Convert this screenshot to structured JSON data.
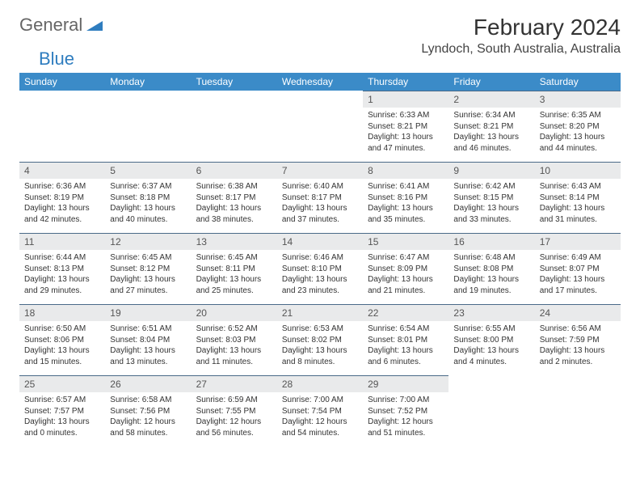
{
  "logo": {
    "text1": "General",
    "text2": "Blue"
  },
  "title": "February 2024",
  "location": "Lyndoch, South Australia, Australia",
  "colors": {
    "header_bg": "#3b8bc8",
    "header_fg": "#ffffff",
    "daynum_bg": "#e9eaeb",
    "daynum_border": "#4a6a88",
    "logo_blue": "#2f7dbf",
    "logo_gray": "#666666"
  },
  "columns": [
    "Sunday",
    "Monday",
    "Tuesday",
    "Wednesday",
    "Thursday",
    "Friday",
    "Saturday"
  ],
  "weeks": [
    [
      {
        "blank": true
      },
      {
        "blank": true
      },
      {
        "blank": true
      },
      {
        "blank": true
      },
      {
        "num": "1",
        "sunrise": "Sunrise: 6:33 AM",
        "sunset": "Sunset: 8:21 PM",
        "daylight": "Daylight: 13 hours and 47 minutes."
      },
      {
        "num": "2",
        "sunrise": "Sunrise: 6:34 AM",
        "sunset": "Sunset: 8:21 PM",
        "daylight": "Daylight: 13 hours and 46 minutes."
      },
      {
        "num": "3",
        "sunrise": "Sunrise: 6:35 AM",
        "sunset": "Sunset: 8:20 PM",
        "daylight": "Daylight: 13 hours and 44 minutes."
      }
    ],
    [
      {
        "num": "4",
        "sunrise": "Sunrise: 6:36 AM",
        "sunset": "Sunset: 8:19 PM",
        "daylight": "Daylight: 13 hours and 42 minutes."
      },
      {
        "num": "5",
        "sunrise": "Sunrise: 6:37 AM",
        "sunset": "Sunset: 8:18 PM",
        "daylight": "Daylight: 13 hours and 40 minutes."
      },
      {
        "num": "6",
        "sunrise": "Sunrise: 6:38 AM",
        "sunset": "Sunset: 8:17 PM",
        "daylight": "Daylight: 13 hours and 38 minutes."
      },
      {
        "num": "7",
        "sunrise": "Sunrise: 6:40 AM",
        "sunset": "Sunset: 8:17 PM",
        "daylight": "Daylight: 13 hours and 37 minutes."
      },
      {
        "num": "8",
        "sunrise": "Sunrise: 6:41 AM",
        "sunset": "Sunset: 8:16 PM",
        "daylight": "Daylight: 13 hours and 35 minutes."
      },
      {
        "num": "9",
        "sunrise": "Sunrise: 6:42 AM",
        "sunset": "Sunset: 8:15 PM",
        "daylight": "Daylight: 13 hours and 33 minutes."
      },
      {
        "num": "10",
        "sunrise": "Sunrise: 6:43 AM",
        "sunset": "Sunset: 8:14 PM",
        "daylight": "Daylight: 13 hours and 31 minutes."
      }
    ],
    [
      {
        "num": "11",
        "sunrise": "Sunrise: 6:44 AM",
        "sunset": "Sunset: 8:13 PM",
        "daylight": "Daylight: 13 hours and 29 minutes."
      },
      {
        "num": "12",
        "sunrise": "Sunrise: 6:45 AM",
        "sunset": "Sunset: 8:12 PM",
        "daylight": "Daylight: 13 hours and 27 minutes."
      },
      {
        "num": "13",
        "sunrise": "Sunrise: 6:45 AM",
        "sunset": "Sunset: 8:11 PM",
        "daylight": "Daylight: 13 hours and 25 minutes."
      },
      {
        "num": "14",
        "sunrise": "Sunrise: 6:46 AM",
        "sunset": "Sunset: 8:10 PM",
        "daylight": "Daylight: 13 hours and 23 minutes."
      },
      {
        "num": "15",
        "sunrise": "Sunrise: 6:47 AM",
        "sunset": "Sunset: 8:09 PM",
        "daylight": "Daylight: 13 hours and 21 minutes."
      },
      {
        "num": "16",
        "sunrise": "Sunrise: 6:48 AM",
        "sunset": "Sunset: 8:08 PM",
        "daylight": "Daylight: 13 hours and 19 minutes."
      },
      {
        "num": "17",
        "sunrise": "Sunrise: 6:49 AM",
        "sunset": "Sunset: 8:07 PM",
        "daylight": "Daylight: 13 hours and 17 minutes."
      }
    ],
    [
      {
        "num": "18",
        "sunrise": "Sunrise: 6:50 AM",
        "sunset": "Sunset: 8:06 PM",
        "daylight": "Daylight: 13 hours and 15 minutes."
      },
      {
        "num": "19",
        "sunrise": "Sunrise: 6:51 AM",
        "sunset": "Sunset: 8:04 PM",
        "daylight": "Daylight: 13 hours and 13 minutes."
      },
      {
        "num": "20",
        "sunrise": "Sunrise: 6:52 AM",
        "sunset": "Sunset: 8:03 PM",
        "daylight": "Daylight: 13 hours and 11 minutes."
      },
      {
        "num": "21",
        "sunrise": "Sunrise: 6:53 AM",
        "sunset": "Sunset: 8:02 PM",
        "daylight": "Daylight: 13 hours and 8 minutes."
      },
      {
        "num": "22",
        "sunrise": "Sunrise: 6:54 AM",
        "sunset": "Sunset: 8:01 PM",
        "daylight": "Daylight: 13 hours and 6 minutes."
      },
      {
        "num": "23",
        "sunrise": "Sunrise: 6:55 AM",
        "sunset": "Sunset: 8:00 PM",
        "daylight": "Daylight: 13 hours and 4 minutes."
      },
      {
        "num": "24",
        "sunrise": "Sunrise: 6:56 AM",
        "sunset": "Sunset: 7:59 PM",
        "daylight": "Daylight: 13 hours and 2 minutes."
      }
    ],
    [
      {
        "num": "25",
        "sunrise": "Sunrise: 6:57 AM",
        "sunset": "Sunset: 7:57 PM",
        "daylight": "Daylight: 13 hours and 0 minutes."
      },
      {
        "num": "26",
        "sunrise": "Sunrise: 6:58 AM",
        "sunset": "Sunset: 7:56 PM",
        "daylight": "Daylight: 12 hours and 58 minutes."
      },
      {
        "num": "27",
        "sunrise": "Sunrise: 6:59 AM",
        "sunset": "Sunset: 7:55 PM",
        "daylight": "Daylight: 12 hours and 56 minutes."
      },
      {
        "num": "28",
        "sunrise": "Sunrise: 7:00 AM",
        "sunset": "Sunset: 7:54 PM",
        "daylight": "Daylight: 12 hours and 54 minutes."
      },
      {
        "num": "29",
        "sunrise": "Sunrise: 7:00 AM",
        "sunset": "Sunset: 7:52 PM",
        "daylight": "Daylight: 12 hours and 51 minutes."
      },
      {
        "blank": true
      },
      {
        "blank": true
      }
    ]
  ]
}
